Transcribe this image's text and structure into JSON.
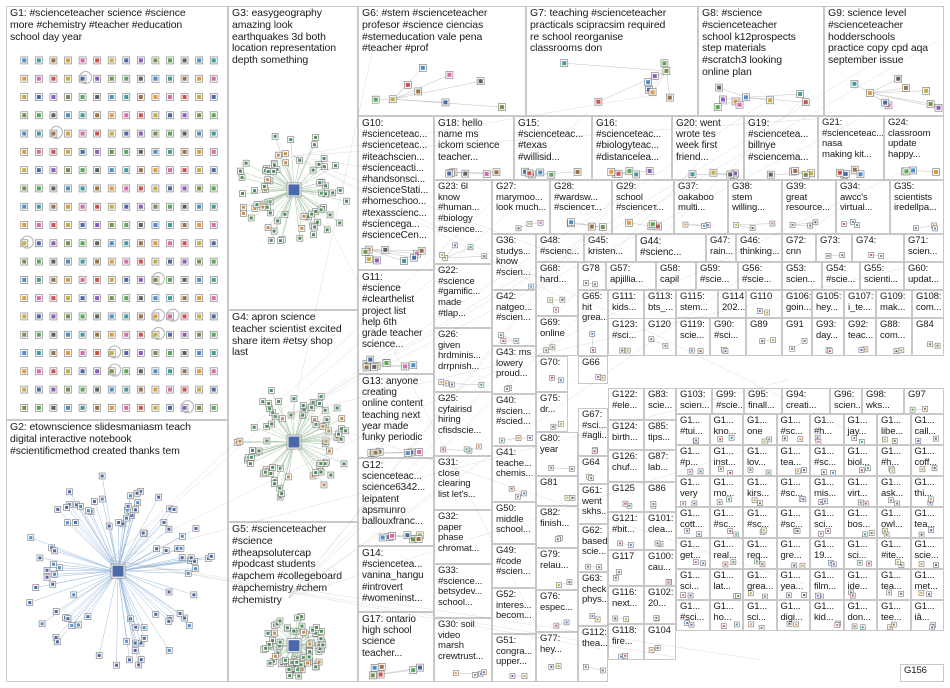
{
  "colors": {
    "border": "#c8c8c8",
    "text": "#1a1a1a",
    "edge": "#bfbfbf"
  },
  "groups": [
    {
      "id": "G1",
      "text": "G1: #scienceteacher science #science\nmore #chemistry #teacher #education\nschool day year",
      "layout": "grid"
    },
    {
      "id": "G3",
      "text": "G3: easygeography\namazing look\nearthquakes 3d both\nlocation representation\ndepth something",
      "layout": "star"
    },
    {
      "id": "G6",
      "text": "G6: #stem #scienceteacher\nprofesor #science ciencias\n#stemeducation vale pena\n#teacher #prof",
      "layout": "cluster"
    },
    {
      "id": "G7",
      "text": "G7: teaching #scienceteacher\npracticals scipracsim required\nre school reorganise\nclassrooms don",
      "layout": "cluster"
    },
    {
      "id": "G8",
      "text": "G8: #science\n#scienceteacher\nschool k12prospects\nstep materials\n#scratch3 looking\nonline plan",
      "layout": "cluster"
    },
    {
      "id": "G9",
      "text": "G9: science level\n#scienceteacher\nhodderschools\npractice copy cpd aqa\nseptember issue",
      "layout": "cluster"
    },
    {
      "id": "G2",
      "text": "G2: etownscience slidesmaniasm teach\ndigital interactive notebook\n#scientificmethod created thanks tem",
      "layout": "sphere"
    },
    {
      "id": "G4",
      "text": "G4: apron science\nteacher scientist excited\nshare item #etsy shop\nlast",
      "layout": "star"
    },
    {
      "id": "G5",
      "text": "G5: #scienceteacher\n#science\n#theapsolutercap\n#podcast students\n#apchem #collegeboard\n#apchemistry #chem\n#chemistry",
      "layout": "star"
    },
    {
      "id": "G10",
      "text": "G10:\n#scienceteac...\n#scienceteac...\n#iteachscien...\n#scienceacti...\n#handsonsci...\n#scienceStati...\n#homeschoo...\n#texasscienc...\n#sciencega...\n#scienceCen...",
      "layout": "cluster"
    },
    {
      "id": "G18",
      "text": "G18: hello\nname ms\nickom science\nteacher...",
      "layout": "cluster"
    },
    {
      "id": "G15",
      "text": "G15:\n#scienceteac...\n#texas\n#willisid...",
      "layout": "cluster"
    },
    {
      "id": "G16",
      "text": "G16:\n#scienceteac...\n#biologyteac...\n#distancelea...",
      "layout": "cluster"
    },
    {
      "id": "G20",
      "text": "G20: went\nwrote tes\nweek first\nfriend...",
      "layout": "cluster"
    },
    {
      "id": "G19",
      "text": "G19:\n#scienceteа...\nbillnye\n#sciencema...",
      "layout": "cluster"
    },
    {
      "id": "G21",
      "text": "G21:\n#scienceteac...\nnasa\nmaking kit...",
      "layout": "cluster"
    },
    {
      "id": "G24",
      "text": "G24:\nclassroom\nupdate\nhappy...",
      "layout": "cluster"
    },
    {
      "id": "G23",
      "text": "G23: 6l\nknow\n#human...\n#biology\n#science...",
      "layout": "cluster"
    },
    {
      "id": "G27",
      "text": "G27:\nmarymoo...\nlook much...",
      "layout": "cluster"
    },
    {
      "id": "G28",
      "text": "G28:\n#wardsw...\n#scienceт...",
      "layout": "cluster"
    },
    {
      "id": "G29",
      "text": "G29:\nschool\n#scienceт...",
      "layout": "cluster"
    },
    {
      "id": "G37",
      "text": "G37:\noakaboo\nmulti...",
      "layout": "cluster"
    },
    {
      "id": "G38",
      "text": "G38:\nstem\nwilling...",
      "layout": "cluster"
    },
    {
      "id": "G39",
      "text": "G39:\ngreat\nresource...",
      "layout": "cluster"
    },
    {
      "id": "G34",
      "text": "G34:\nawcc's\nvirtual...",
      "layout": "cluster"
    },
    {
      "id": "G35",
      "text": "G35:\nscientists\niredellpa...",
      "layout": "cluster"
    },
    {
      "id": "G11",
      "text": "G11:\n#science\n#clearthelist\nproject list\nhelp 6th\ngrade teacher\nscience...",
      "layout": "cluster"
    },
    {
      "id": "G22",
      "text": "G22:\n#science\n#gamific...\nmade\n#tlap...",
      "layout": "cluster"
    },
    {
      "id": "G36",
      "text": "G36:\nstudys...\nknow\n#scien...",
      "layout": "cluster"
    },
    {
      "id": "G48",
      "text": "G48:\n#scienc...",
      "layout": "cluster"
    },
    {
      "id": "G45",
      "text": "G45:\nkristen...",
      "layout": "cluster"
    },
    {
      "id": "G44",
      "text": "G44:\n#scienc...",
      "layout": "cluster"
    },
    {
      "id": "G47",
      "text": "G47:\nrain...",
      "layout": "cluster"
    },
    {
      "id": "G46",
      "text": "G46:\nthinking...",
      "layout": "cluster"
    },
    {
      "id": "G72",
      "text": "G72:\ncnn",
      "layout": "cluster"
    },
    {
      "id": "G73",
      "text": "G73:",
      "layout": "cluster"
    },
    {
      "id": "G74",
      "text": "G74:",
      "layout": "cluster"
    },
    {
      "id": "G71",
      "text": "G71:\nscien...",
      "layout": "cluster"
    },
    {
      "id": "G68",
      "text": "G68:\nhard...",
      "layout": "cluster"
    },
    {
      "id": "G78",
      "text": "G78",
      "layout": "cluster"
    },
    {
      "id": "G57",
      "text": "G57:\napjillia...",
      "layout": "cluster"
    },
    {
      "id": "G58",
      "text": "G58:\ncapil",
      "layout": "cluster"
    },
    {
      "id": "G59",
      "text": "G59:\n#scie...",
      "layout": "cluster"
    },
    {
      "id": "G56",
      "text": "G56:\n#scie...",
      "layout": "cluster"
    },
    {
      "id": "G53",
      "text": "G53:\nscien...",
      "layout": "cluster"
    },
    {
      "id": "G54",
      "text": "G54:\n#scie...",
      "layout": "cluster"
    },
    {
      "id": "G55",
      "text": "G55:\nscienti...",
      "layout": "cluster"
    },
    {
      "id": "G60",
      "text": "G60:\nupdat...",
      "layout": "cluster"
    },
    {
      "id": "G42",
      "text": "G42:\nnatgeo...\n#scien...",
      "layout": "cluster"
    },
    {
      "id": "G26",
      "text": "G26:\ngiven\nhrdminis...\ndrrpnish...",
      "layout": "cluster"
    },
    {
      "id": "G13",
      "text": "G13: anyone\ncreating\nonline content\nteaching next\nyear made\nfunky periodic",
      "layout": "cluster"
    },
    {
      "id": "G69",
      "text": "G69:\nonline",
      "layout": "cluster"
    },
    {
      "id": "G65",
      "text": "G65:\nhit\ngrea...",
      "layout": "cluster"
    },
    {
      "id": "G111",
      "text": "G111:\nkids...",
      "layout": "cluster"
    },
    {
      "id": "G113",
      "text": "G113:\nbts_...",
      "layout": "cluster"
    },
    {
      "id": "G115",
      "text": "G115:\nstem...",
      "layout": "cluster"
    },
    {
      "id": "G114",
      "text": "G114:\n202...",
      "layout": "cluster"
    },
    {
      "id": "G110",
      "text": "G110",
      "layout": "cluster"
    },
    {
      "id": "G106",
      "text": "G106:\ngoin...",
      "layout": "cluster"
    },
    {
      "id": "G105",
      "text": "G105:\nhey...",
      "layout": "cluster"
    },
    {
      "id": "G107",
      "text": "G107:\ni_te...",
      "layout": "cluster"
    },
    {
      "id": "G109",
      "text": "G109:\nmak...",
      "layout": "cluster"
    },
    {
      "id": "G108",
      "text": "G108:\ncom...",
      "layout": "cluster"
    },
    {
      "id": "G43",
      "text": "G43: ms\nlowery\nproud...",
      "layout": "cluster"
    },
    {
      "id": "G70",
      "text": "G70:",
      "layout": "cluster"
    },
    {
      "id": "G66",
      "text": "G66",
      "layout": "cluster"
    },
    {
      "id": "G123",
      "text": "G123:\n#sci...",
      "layout": "cluster"
    },
    {
      "id": "G120",
      "text": "G120",
      "layout": "cluster"
    },
    {
      "id": "G119",
      "text": "G119:\nscie...",
      "layout": "cluster"
    },
    {
      "id": "G90",
      "text": "G90:\n#sci...",
      "layout": "cluster"
    },
    {
      "id": "G89",
      "text": "G89",
      "layout": "cluster"
    },
    {
      "id": "G91",
      "text": "G91",
      "layout": "cluster"
    },
    {
      "id": "G93",
      "text": "G93:\nday...",
      "layout": "cluster"
    },
    {
      "id": "G92",
      "text": "G92:\nteac...",
      "layout": "cluster"
    },
    {
      "id": "G88",
      "text": "G88:\ncom...",
      "layout": "cluster"
    },
    {
      "id": "G84",
      "text": "G84",
      "layout": "cluster"
    },
    {
      "id": "G25",
      "text": "G25:\ncyfairisd\nhiring\ncfisdscie...",
      "layout": "cluster"
    },
    {
      "id": "G40",
      "text": "G40:\n#scien...\n#scied...",
      "layout": "cluster"
    },
    {
      "id": "G75",
      "text": "G75:\ndr...",
      "layout": "cluster"
    },
    {
      "id": "G122",
      "text": "G122:\n#ele...",
      "layout": "cluster"
    },
    {
      "id": "G83",
      "text": "G83:\nscie...",
      "layout": "cluster"
    },
    {
      "id": "G103",
      "text": "G103:\nscien...",
      "layout": "cluster"
    },
    {
      "id": "G99",
      "text": "G99:\n#scie...",
      "layout": "cluster"
    },
    {
      "id": "G95",
      "text": "G95:\nfinall...",
      "layout": "cluster"
    },
    {
      "id": "G94",
      "text": "G94:\ncreati...",
      "layout": "cluster"
    },
    {
      "id": "G96",
      "text": "G96:\nscien...",
      "layout": "cluster"
    },
    {
      "id": "G98",
      "text": "G98:\nwks...",
      "layout": "cluster"
    },
    {
      "id": "G97",
      "text": "G97",
      "layout": "cluster"
    },
    {
      "id": "G67",
      "text": "G67:\n#sci...\n#agli...",
      "layout": "cluster"
    },
    {
      "id": "G124",
      "text": "G124:\nbirth...",
      "layout": "cluster"
    },
    {
      "id": "G85",
      "text": "G85:\ntips...",
      "layout": "cluster"
    },
    {
      "id": "G80",
      "text": "G80:\nyear",
      "layout": "cluster"
    },
    {
      "id": "G41",
      "text": "G41:\nteache...\nchemis...",
      "layout": "cluster"
    },
    {
      "id": "G31",
      "text": "G31:\nclose\nclearing\nlist let's...",
      "layout": "cluster"
    },
    {
      "id": "G12",
      "text": "G12:\nscienceteac...\nscience6342...\nleipatent\napsmunro\nballouxfranc...",
      "layout": "cluster"
    },
    {
      "id": "G64",
      "text": "G64",
      "layout": "cluster"
    },
    {
      "id": "G126",
      "text": "G126:\nchuf...",
      "layout": "cluster"
    },
    {
      "id": "G87",
      "text": "G87:\nlab...",
      "layout": "cluster"
    },
    {
      "id": "G81",
      "text": "G81",
      "layout": "cluster"
    },
    {
      "id": "G86",
      "text": "G86",
      "layout": "cluster"
    },
    {
      "id": "G125",
      "text": "G125",
      "layout": "cluster"
    },
    {
      "id": "G50",
      "text": "G50:\nmiddle\nschool...",
      "layout": "cluster"
    },
    {
      "id": "G61",
      "text": "G61:\nwent\nskhs...",
      "layout": "cluster"
    },
    {
      "id": "G82",
      "text": "G82:\nfinish...",
      "layout": "cluster"
    },
    {
      "id": "G32",
      "text": "G32:\npaper\nphase\nchromat...",
      "layout": "cluster"
    },
    {
      "id": "G14",
      "text": "G14:\n#scienceteа...\nvanina_hangu\n#introvert\n#womeninst...",
      "layout": "cluster"
    },
    {
      "id": "G49",
      "text": "G49:\n#code\n#scien...",
      "layout": "cluster"
    },
    {
      "id": "G62",
      "text": "G62:\nbased\nscie...",
      "layout": "cluster"
    },
    {
      "id": "G121",
      "text": "G121:\n#bit...",
      "layout": "cluster"
    },
    {
      "id": "G101",
      "text": "G101:\nclea...",
      "layout": "cluster"
    },
    {
      "id": "G79",
      "text": "G79:\nrelau...",
      "layout": "cluster"
    },
    {
      "id": "G117",
      "text": "G117",
      "layout": "cluster"
    },
    {
      "id": "G100",
      "text": "G100:\ncau...",
      "layout": "cluster"
    },
    {
      "id": "G33",
      "text": "G33:\n#science...\nbetsydev...\nschool...",
      "layout": "cluster"
    },
    {
      "id": "G52",
      "text": "G52:\ninteres...\nbecom...",
      "layout": "cluster"
    },
    {
      "id": "G17",
      "text": "G17: ontario\nhigh school\nscience\nteacher...",
      "layout": "cluster"
    },
    {
      "id": "G76",
      "text": "G76:\nespec...",
      "layout": "cluster"
    },
    {
      "id": "G63",
      "text": "G63:\ncheck\nphys...",
      "layout": "cluster"
    },
    {
      "id": "G116",
      "text": "G116:\nnext...",
      "layout": "cluster"
    },
    {
      "id": "G102",
      "text": "G102:\n20...",
      "layout": "cluster"
    },
    {
      "id": "G30",
      "text": "G30: soil\nvideo\nmarsh\ncrewtrust...",
      "layout": "cluster"
    },
    {
      "id": "G51",
      "text": "G51:\ncongra...\nupper...",
      "layout": "cluster"
    },
    {
      "id": "G77",
      "text": "G77:\nhey...",
      "layout": "cluster"
    },
    {
      "id": "G112",
      "text": "G112:\nthea...",
      "layout": "cluster"
    },
    {
      "id": "G118",
      "text": "G118:\nfire...",
      "layout": "cluster"
    },
    {
      "id": "G104",
      "text": "G104",
      "layout": "cluster"
    },
    {
      "id": "G156",
      "text": "G156",
      "layout": "cluster"
    }
  ],
  "small_groups": [
    {
      "label": "G1...",
      "text": "#tui..."
    },
    {
      "label": "G1...",
      "text": "kno..."
    },
    {
      "label": "G1...",
      "text": "one"
    },
    {
      "label": "G1...",
      "text": "#sc..."
    },
    {
      "label": "G1...",
      "text": "#h..."
    },
    {
      "label": "G1...",
      "text": "jay..."
    },
    {
      "label": "G1...",
      "text": "libe..."
    },
    {
      "label": "G1...",
      "text": "call..."
    },
    {
      "label": "G1...",
      "text": "#p..."
    },
    {
      "label": "G1...",
      "text": "inst..."
    },
    {
      "label": "G1...",
      "text": "lov..."
    },
    {
      "label": "G1...",
      "text": "tea..."
    },
    {
      "label": "G1...",
      "text": "#sc..."
    },
    {
      "label": "G1...",
      "text": "biol..."
    },
    {
      "label": "G1...",
      "text": "#h..."
    },
    {
      "label": "G1...",
      "text": "coff..."
    },
    {
      "label": "G1...",
      "text": "very"
    },
    {
      "label": "G1...",
      "text": "mo..."
    },
    {
      "label": "G1...",
      "text": "kirs..."
    },
    {
      "label": "G1...",
      "text": "#sc..."
    },
    {
      "label": "G1...",
      "text": "mis..."
    },
    {
      "label": "G1...",
      "text": "virt..."
    },
    {
      "label": "G1...",
      "text": "ask..."
    },
    {
      "label": "G1...",
      "text": "thi..."
    },
    {
      "label": "G1...",
      "text": "cott..."
    },
    {
      "label": "G1...",
      "text": "#sc..."
    },
    {
      "label": "G1...",
      "text": "#sc..."
    },
    {
      "label": "G1...",
      "text": "#sc..."
    },
    {
      "label": "G1...",
      "text": "sci..."
    },
    {
      "label": "G1...",
      "text": "bos..."
    },
    {
      "label": "G1...",
      "text": "owl..."
    },
    {
      "label": "G1...",
      "text": "tea..."
    },
    {
      "label": "G1...",
      "text": "get..."
    },
    {
      "label": "G1...",
      "text": "real..."
    },
    {
      "label": "G1...",
      "text": "req..."
    },
    {
      "label": "G1...",
      "text": "gre..."
    },
    {
      "label": "G1...",
      "text": "19..."
    },
    {
      "label": "G1...",
      "text": "sci..."
    },
    {
      "label": "G1...",
      "text": "#ite..."
    },
    {
      "label": "G1...",
      "text": "scie..."
    },
    {
      "label": "G1...",
      "text": "sci..."
    },
    {
      "label": "G1...",
      "text": "lat..."
    },
    {
      "label": "G1...",
      "text": "grea..."
    },
    {
      "label": "G1...",
      "text": "yea..."
    },
    {
      "label": "G1...",
      "text": "film..."
    },
    {
      "label": "G1...",
      "text": "ide..."
    },
    {
      "label": "G1...",
      "text": "tea..."
    },
    {
      "label": "G1...",
      "text": "met..."
    },
    {
      "label": "G1...",
      "text": "#sci..."
    },
    {
      "label": "G1...",
      "text": "ho..."
    },
    {
      "label": "G1...",
      "text": "sci..."
    },
    {
      "label": "G1...",
      "text": "digi..."
    },
    {
      "label": "G1...",
      "text": "kid..."
    },
    {
      "label": "G1...",
      "text": "don..."
    },
    {
      "label": "G1...",
      "text": "tee..."
    },
    {
      "label": "G1...",
      "text": "iâ..."
    }
  ]
}
